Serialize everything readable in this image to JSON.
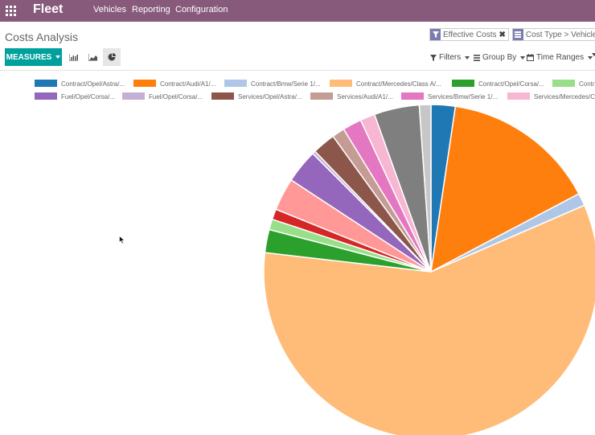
{
  "app": {
    "title": "Fleet",
    "menu": [
      "Vehicles",
      "Reporting",
      "Configuration"
    ]
  },
  "breadcrumb": "Costs Analysis",
  "search": {
    "facets": [
      {
        "icon": "filter-icon",
        "label": "Effective Costs"
      },
      {
        "icon": "group-by-icon",
        "label": "Cost Type > Vehicle"
      }
    ],
    "options": [
      "Filters",
      "Group By",
      "Time Ranges"
    ]
  },
  "toolbar": {
    "measures_label": "MEASURES",
    "modes": [
      "bar-chart-icon",
      "line-chart-icon",
      "pie-chart-icon"
    ],
    "active_mode": "pie-chart-icon"
  },
  "chart_data": {
    "type": "pie",
    "legend_placement": "top",
    "slices": [
      {
        "label": "Contract/Opel/Astra/...",
        "value": 2.3,
        "color": "#1f77b4"
      },
      {
        "label": "Contract/Audi/A1/...",
        "value": 14.7,
        "color": "#ff7f0e"
      },
      {
        "label": "Contract/Bmw/Serie 1/...",
        "value": 1.2,
        "color": "#aec7e8"
      },
      {
        "label": "Contract/Mercedes/Class A/...",
        "value": 57.4,
        "color": "#ffbb78"
      },
      {
        "label": "Contract/Opel/Corsa/...",
        "value": 2.2,
        "color": "#2ca02c"
      },
      {
        "label": "Contract/...",
        "value": 1.0,
        "color": "#98df8a"
      },
      {
        "label": "",
        "value": 1.0,
        "color": "#d62728"
      },
      {
        "label": "",
        "value": 3.1,
        "color": "#ff9896"
      },
      {
        "label": "Fuel/Opel/Corsa/...",
        "value": 3.2,
        "color": "#9467bd"
      },
      {
        "label": "Fuel/Opel/Corsa/...",
        "value": 0.3,
        "color": "#c5b0d5"
      },
      {
        "label": "Services/Opel/Astra/...",
        "value": 2.2,
        "color": "#8c564b"
      },
      {
        "label": "Services/Audi/A1/...",
        "value": 1.2,
        "color": "#c49c94"
      },
      {
        "label": "Services/Bmw/Serie 1/...",
        "value": 1.8,
        "color": "#e377c2"
      },
      {
        "label": "Services/Mercedes/C...",
        "value": 1.4,
        "color": "#f7b6d2"
      },
      {
        "label": "",
        "value": 4.3,
        "color": "#7f7f7f"
      },
      {
        "label": "",
        "value": 1.1,
        "color": "#c7c7c7"
      }
    ]
  }
}
